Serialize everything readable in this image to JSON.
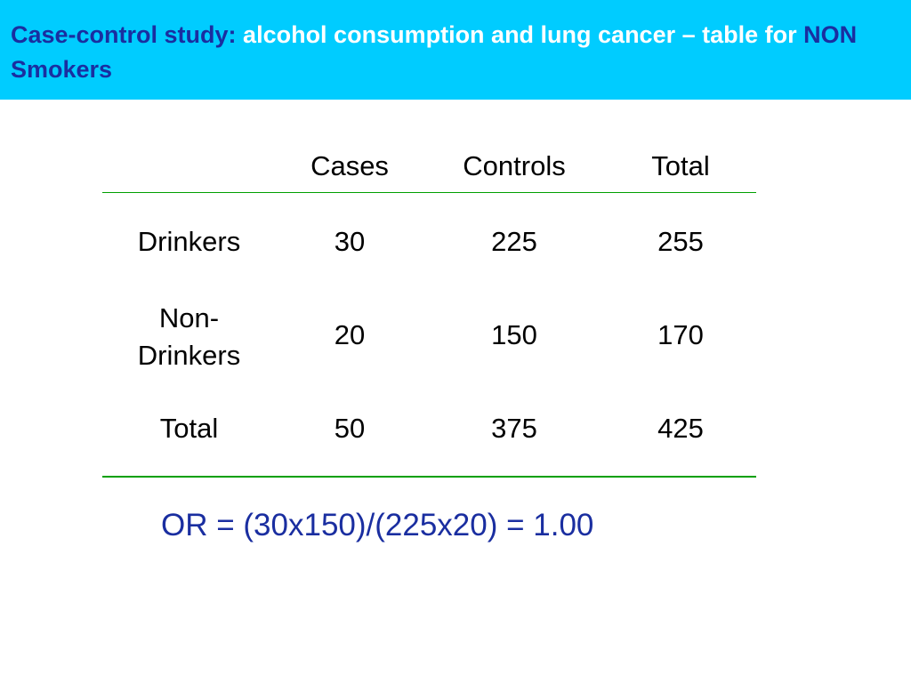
{
  "title": {
    "part1": "Case-control study: ",
    "part2": "alcohol consumption and lung cancer – table for ",
    "part3": "NON Smokers",
    "color_dark": "#1a2ea0",
    "color_bar": "#00ccff"
  },
  "table": {
    "columns": [
      "Cases",
      "Controls",
      "Total"
    ],
    "rows": [
      {
        "label": "Drinkers",
        "cases": "30",
        "controls": "225",
        "total": "255"
      },
      {
        "label_line1": "Non-",
        "label_line2": "Drinkers",
        "cases": "20",
        "controls": "150",
        "total": "170"
      },
      {
        "label": "Total",
        "cases": "50",
        "controls": "375",
        "total": "425"
      }
    ],
    "rule_color": "#00a000"
  },
  "formula": "OR = (30x150)/(225x20) = 1.00"
}
